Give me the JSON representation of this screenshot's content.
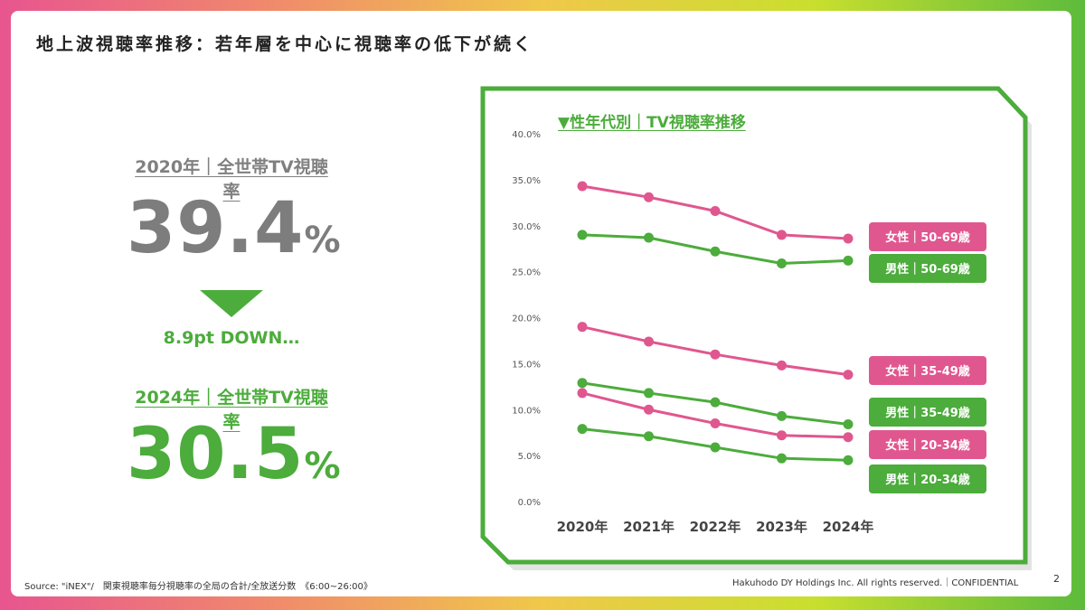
{
  "title": "地上波視聴率推移：若年層を中心に視聴率の低下が続く",
  "kpi": {
    "top_label": "2020年｜全世帯TV視聴率",
    "top_value": "39.4",
    "top_unit": "%",
    "down_text": "8.9pt DOWN…",
    "bottom_label": "2024年｜全世帯TV視聴率",
    "bottom_value": "30.5",
    "bottom_unit": "%"
  },
  "colors": {
    "female": "#e0578f",
    "male": "#4cac3c",
    "gray": "#7d7d7d"
  },
  "chart_data": {
    "type": "line",
    "title": "▼性年代別｜TV視聴率推移",
    "categories": [
      "2020年",
      "2021年",
      "2022年",
      "2023年",
      "2024年"
    ],
    "ylim": [
      0,
      40
    ],
    "yticks": [
      0,
      5,
      10,
      15,
      20,
      25,
      30,
      35,
      40
    ],
    "ytick_labels": [
      "0.0%",
      "5.0%",
      "10.0%",
      "15.0%",
      "20.0%",
      "25.0%",
      "30.0%",
      "35.0%",
      "40.0%"
    ],
    "grid": false,
    "legend": "right-side labels",
    "series": [
      {
        "name": "女性｜50-69歳",
        "group": "female",
        "values": [
          34.3,
          33.1,
          31.6,
          29.0,
          28.6
        ]
      },
      {
        "name": "男性｜50-69歳",
        "group": "male",
        "values": [
          29.0,
          28.7,
          27.2,
          25.9,
          26.2
        ]
      },
      {
        "name": "女性｜35-49歳",
        "group": "female",
        "values": [
          19.0,
          17.4,
          16.0,
          14.8,
          13.8
        ]
      },
      {
        "name": "男性｜35-49歳",
        "group": "male",
        "values": [
          12.9,
          11.8,
          10.8,
          9.3,
          8.4
        ]
      },
      {
        "name": "女性｜20-34歳",
        "group": "female",
        "values": [
          11.8,
          10.0,
          8.5,
          7.2,
          7.0
        ]
      },
      {
        "name": "男性｜20-34歳",
        "group": "male",
        "values": [
          7.9,
          7.1,
          5.9,
          4.7,
          4.5
        ]
      }
    ]
  },
  "footer": {
    "source": "Source: \"iNEX\"/　関東視聴率毎分視聴率の全局の合計/全放送分数　《6:00~26:00》",
    "copyright": "Hakuhodo DY Holdings Inc. All rights reserved.｜CONFIDENTIAL",
    "page": "2"
  }
}
